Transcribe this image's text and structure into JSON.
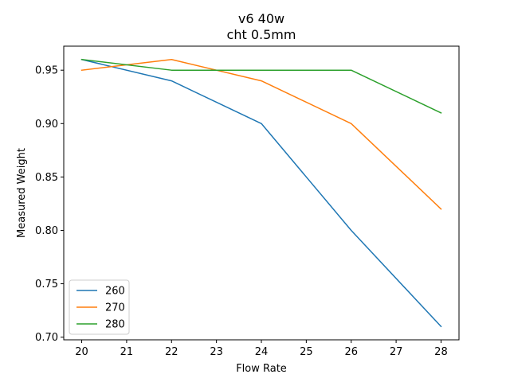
{
  "chart_data": {
    "type": "line",
    "title_line1": "v6 40w",
    "title_line2": "cht 0.5mm",
    "xlabel": "Flow Rate",
    "ylabel": "Measured Weight",
    "xlim": [
      19.6,
      28.4
    ],
    "ylim": [
      0.6975,
      0.9725
    ],
    "xticks": [
      20,
      21,
      22,
      23,
      24,
      25,
      26,
      27,
      28
    ],
    "xtick_labels": [
      "20",
      "21",
      "22",
      "23",
      "24",
      "25",
      "26",
      "27",
      "28"
    ],
    "yticks": [
      0.7,
      0.75,
      0.8,
      0.85,
      0.9,
      0.95
    ],
    "ytick_labels": [
      "0.70",
      "0.75",
      "0.80",
      "0.85",
      "0.90",
      "0.95"
    ],
    "grid": false,
    "legend_position": "lower-left",
    "series": [
      {
        "name": "260",
        "color": "#1f77b4",
        "x": [
          20,
          22,
          24,
          26,
          28
        ],
        "y": [
          0.96,
          0.94,
          0.9,
          0.8,
          0.71
        ]
      },
      {
        "name": "270",
        "color": "#ff7f0e",
        "x": [
          20,
          22,
          24,
          26,
          28
        ],
        "y": [
          0.95,
          0.96,
          0.94,
          0.9,
          0.82
        ]
      },
      {
        "name": "280",
        "color": "#2ca02c",
        "x": [
          20,
          22,
          24,
          26,
          28
        ],
        "y": [
          0.96,
          0.95,
          0.95,
          0.95,
          0.91
        ]
      }
    ]
  }
}
